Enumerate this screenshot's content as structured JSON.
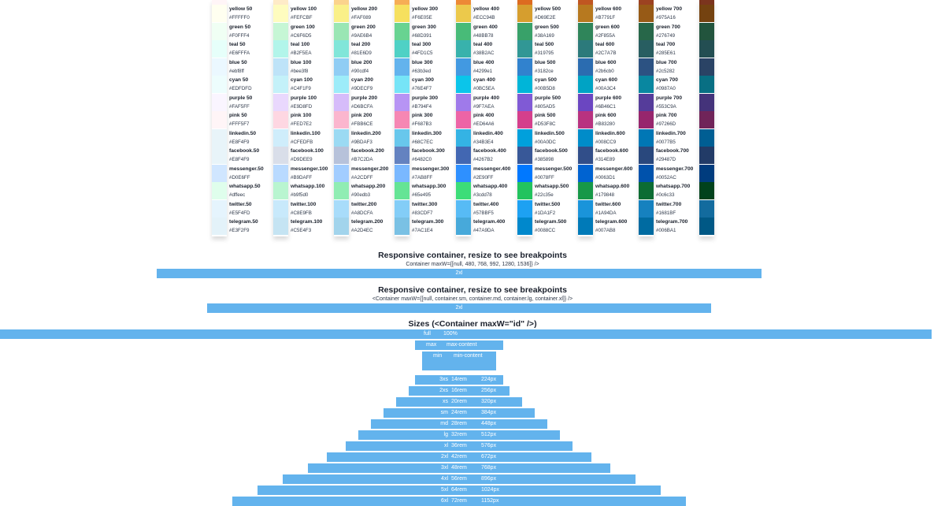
{
  "palette": {
    "columns": [
      "50",
      "100",
      "200",
      "300",
      "400",
      "500",
      "600",
      "700",
      "800"
    ],
    "rows": [
      {
        "family": "yellow",
        "prefix": "yellow ",
        "colors": [
          [
            "#FFFFF0",
            "#FFFFF0"
          ],
          [
            "#FEFCBF",
            "#FEFCBF"
          ],
          [
            "#FAF089",
            "#FAF089"
          ],
          [
            "#F6E05E",
            "#F6E05E"
          ],
          [
            "#ECC94B",
            "#ECC94B"
          ],
          [
            "#D69E2E",
            "#D69E2E"
          ],
          [
            "#B7791F",
            "#B7791F"
          ],
          [
            "#975A16",
            "#975A16"
          ],
          [
            "#744210",
            "#744210"
          ]
        ]
      },
      {
        "family": "green",
        "prefix": "green ",
        "colors": [
          [
            "#F0FFF4",
            "#F0FFF4"
          ],
          [
            "#C6F6D5",
            "#C6F6D5"
          ],
          [
            "#9AE6B4",
            "#9AE6B4"
          ],
          [
            "#68D391",
            "#68D391"
          ],
          [
            "#48BB78",
            "#48BB78"
          ],
          [
            "#38A169",
            "#38A169"
          ],
          [
            "#2F855A",
            "#2F855A"
          ],
          [
            "#276749",
            "#276749"
          ],
          [
            "#22543D",
            "#22543D"
          ]
        ]
      },
      {
        "family": "teal",
        "prefix": "teal ",
        "colors": [
          [
            "#E6FFFA",
            "#E6FFFA"
          ],
          [
            "#B2F5EA",
            "#B2F5EA"
          ],
          [
            "#81E6D9",
            "#81E6D9"
          ],
          [
            "#4FD1C5",
            "#4FD1C5"
          ],
          [
            "#38B2AC",
            "#38B2AC"
          ],
          [
            "#319795",
            "#319795"
          ],
          [
            "#2C7A7B",
            "#2C7A7B"
          ],
          [
            "#285E61",
            "#285E61"
          ],
          [
            "#234E52",
            "#234E52"
          ]
        ]
      },
      {
        "family": "blue",
        "prefix": "blue ",
        "colors": [
          [
            "#ebf8ff",
            "#ebf8ff"
          ],
          [
            "#bee3f8",
            "#bee3f8"
          ],
          [
            "#90cdf4",
            "#90cdf4"
          ],
          [
            "#63b3ed",
            "#63b3ed"
          ],
          [
            "#4299e1",
            "#4299e1"
          ],
          [
            "#3182ce",
            "#3182ce"
          ],
          [
            "#2b6cb0",
            "#2b6cb0"
          ],
          [
            "#2c5282",
            "#2c5282"
          ],
          [
            "#2a4365",
            "#2a4365"
          ]
        ]
      },
      {
        "family": "cyan",
        "prefix": "cyan ",
        "colors": [
          [
            "#EDFDFD",
            "#EDFDFD"
          ],
          [
            "#C4F1F9",
            "#C4F1F9"
          ],
          [
            "#9DECF9",
            "#9DECF9"
          ],
          [
            "#76E4F7",
            "#76E4F7"
          ],
          [
            "#0BC5EA",
            "#0BC5EA"
          ],
          [
            "#00B5D8",
            "#00B5D8"
          ],
          [
            "#00A3C4",
            "#00A3C4"
          ],
          [
            "#0987A0",
            "#0987A0"
          ],
          [
            "#086F83",
            "#086F83"
          ]
        ]
      },
      {
        "family": "purple",
        "prefix": "purple ",
        "colors": [
          [
            "#FAF5FF",
            "#FAF5FF"
          ],
          [
            "#E9D8FD",
            "#E9D8FD"
          ],
          [
            "#D6BCFA",
            "#D6BCFA"
          ],
          [
            "#B794F4",
            "#B794F4"
          ],
          [
            "#9F7AEA",
            "#9F7AEA"
          ],
          [
            "#805AD5",
            "#805AD5"
          ],
          [
            "#6B46C1",
            "#6B46C1"
          ],
          [
            "#553C9A",
            "#553C9A"
          ],
          [
            "#44337A",
            "#44337A"
          ]
        ]
      },
      {
        "family": "pink",
        "prefix": "pink ",
        "colors": [
          [
            "#FFF5F7",
            "#FFF5F7"
          ],
          [
            "#FED7E2",
            "#FED7E2"
          ],
          [
            "#FBB6CE",
            "#FBB6CE"
          ],
          [
            "#F687B3",
            "#F687B3"
          ],
          [
            "#ED64A6",
            "#ED64A6"
          ],
          [
            "#D53F8C",
            "#D53F8C"
          ],
          [
            "#B83280",
            "#B83280"
          ],
          [
            "#97266D",
            "#97266D"
          ],
          [
            "#702459",
            "#702459"
          ]
        ]
      },
      {
        "family": "linkedin",
        "prefix": "linkedin.",
        "colors": [
          [
            "#E8F4F9",
            "#E8F4F9"
          ],
          [
            "#CFEDFB",
            "#CFEDFB"
          ],
          [
            "#9BDAF3",
            "#9BDAF3"
          ],
          [
            "#68C7EC",
            "#68C7EC"
          ],
          [
            "#34B3E4",
            "#34B3E4"
          ],
          [
            "#00A0DC",
            "#00A0DC"
          ],
          [
            "#008CC9",
            "#008CC9"
          ],
          [
            "#0077B5",
            "#0077B5"
          ],
          [
            "#005E93",
            "#005E93"
          ]
        ]
      },
      {
        "family": "facebook",
        "prefix": "facebook.",
        "colors": [
          [
            "#E8F4F9",
            "#E8F4F9"
          ],
          [
            "#D9DEE9",
            "#D9DEE9"
          ],
          [
            "#B7C2DA",
            "#B7C2DA"
          ],
          [
            "#6482C0",
            "#6482C0"
          ],
          [
            "#4267B2",
            "#4267B2"
          ],
          [
            "#385898",
            "#385898"
          ],
          [
            "#314E89",
            "#314E89"
          ],
          [
            "#29487D",
            "#29487D"
          ],
          [
            "#223B67",
            "#223B67"
          ]
        ]
      },
      {
        "family": "messenger",
        "prefix": "messenger.",
        "colors": [
          [
            "#D0E6FF",
            "#D0E6FF"
          ],
          [
            "#B9DAFF",
            "#B9DAFF"
          ],
          [
            "#A2CDFF",
            "#A2CDFF"
          ],
          [
            "#7AB8FF",
            "#7AB8FF"
          ],
          [
            "#2E90FF",
            "#2E90FF"
          ],
          [
            "#0078FF",
            "#0078FF"
          ],
          [
            "#0063D1",
            "#0063D1"
          ],
          [
            "#0052AC",
            "#0052AC"
          ],
          [
            "#003C7E",
            "#003C7E"
          ]
        ]
      },
      {
        "family": "whatsapp",
        "prefix": "whatsapp.",
        "colors": [
          [
            "#dffeec",
            "#dffeec"
          ],
          [
            "#b9f5d0",
            "#b9f5d0"
          ],
          [
            "#90edb3",
            "#90edb3"
          ],
          [
            "#65e495",
            "#65e495"
          ],
          [
            "#3cdd78",
            "#3cdd78"
          ],
          [
            "#22c35e",
            "#22c35e"
          ],
          [
            "#179848",
            "#179848"
          ],
          [
            "#0c6c33",
            "#0c6c33"
          ],
          [
            "#01421c",
            "#01421c"
          ]
        ]
      },
      {
        "family": "twitter",
        "prefix": "twitter.",
        "colors": [
          [
            "#E5F4FD",
            "#E5F4FD"
          ],
          [
            "#C8E9FB",
            "#C8E9FB"
          ],
          [
            "#A8DCFA",
            "#A8DCFA"
          ],
          [
            "#83CDF7",
            "#83CDF7"
          ],
          [
            "#57BBF5",
            "#57BBF5"
          ],
          [
            "#1DA1F2",
            "#1DA1F2"
          ],
          [
            "#1A94DA",
            "#1A94DA"
          ],
          [
            "#1681BF",
            "#1681BF"
          ],
          [
            "#136B9E",
            "#136B9E"
          ]
        ]
      },
      {
        "family": "telegram",
        "prefix": "telegram.",
        "colors": [
          [
            "#E3F2F9",
            "#E3F2F9"
          ],
          [
            "#C5E4F3",
            "#C5E4F3"
          ],
          [
            "#A2D4EC",
            "#A2D4EC"
          ],
          [
            "#7AC1E4",
            "#7AC1E4"
          ],
          [
            "#47A9DA",
            "#47A9DA"
          ],
          [
            "#0088CC",
            "#0088CC"
          ],
          [
            "#007AB8",
            "#007AB8"
          ],
          [
            "#006BA1",
            "#006BA1"
          ],
          [
            "#005885",
            "#005885"
          ]
        ]
      }
    ]
  },
  "responsive1": {
    "title": "Responsive container, resize to see breakpoints",
    "subtitle": "Container maxW={[null, 480, 768, 992, 1280, 1536]} />",
    "bar_label": "2xl"
  },
  "responsive2": {
    "title": "Responsive container, resize to see breakpoints",
    "subtitle": "<Container maxW={[null, container.sm, container.md, container.lg, container.xl]} />",
    "bar_label": "2xl"
  },
  "sizes": {
    "title": "Sizes (<Container maxW=\"id\" />)",
    "rows": [
      {
        "id": "full",
        "rem": "",
        "px": "100%"
      },
      {
        "id": "max",
        "rem": "max-content",
        "px": ""
      },
      {
        "id": "min",
        "rem": "min-content",
        "px": ""
      },
      {
        "id": "3xs",
        "rem": "14rem",
        "px": "224px"
      },
      {
        "id": "2xs",
        "rem": "16rem",
        "px": "256px"
      },
      {
        "id": "xs",
        "rem": "20rem",
        "px": "320px"
      },
      {
        "id": "sm",
        "rem": "24rem",
        "px": "384px"
      },
      {
        "id": "md",
        "rem": "28rem",
        "px": "448px"
      },
      {
        "id": "lg",
        "rem": "32rem",
        "px": "512px"
      },
      {
        "id": "xl",
        "rem": "36rem",
        "px": "576px"
      },
      {
        "id": "2xl",
        "rem": "42rem",
        "px": "672px"
      },
      {
        "id": "3xl",
        "rem": "48rem",
        "px": "768px"
      },
      {
        "id": "4xl",
        "rem": "56rem",
        "px": "896px"
      },
      {
        "id": "5xl",
        "rem": "64rem",
        "px": "1024px"
      },
      {
        "id": "6xl",
        "rem": "72rem",
        "px": "1152px"
      }
    ]
  }
}
